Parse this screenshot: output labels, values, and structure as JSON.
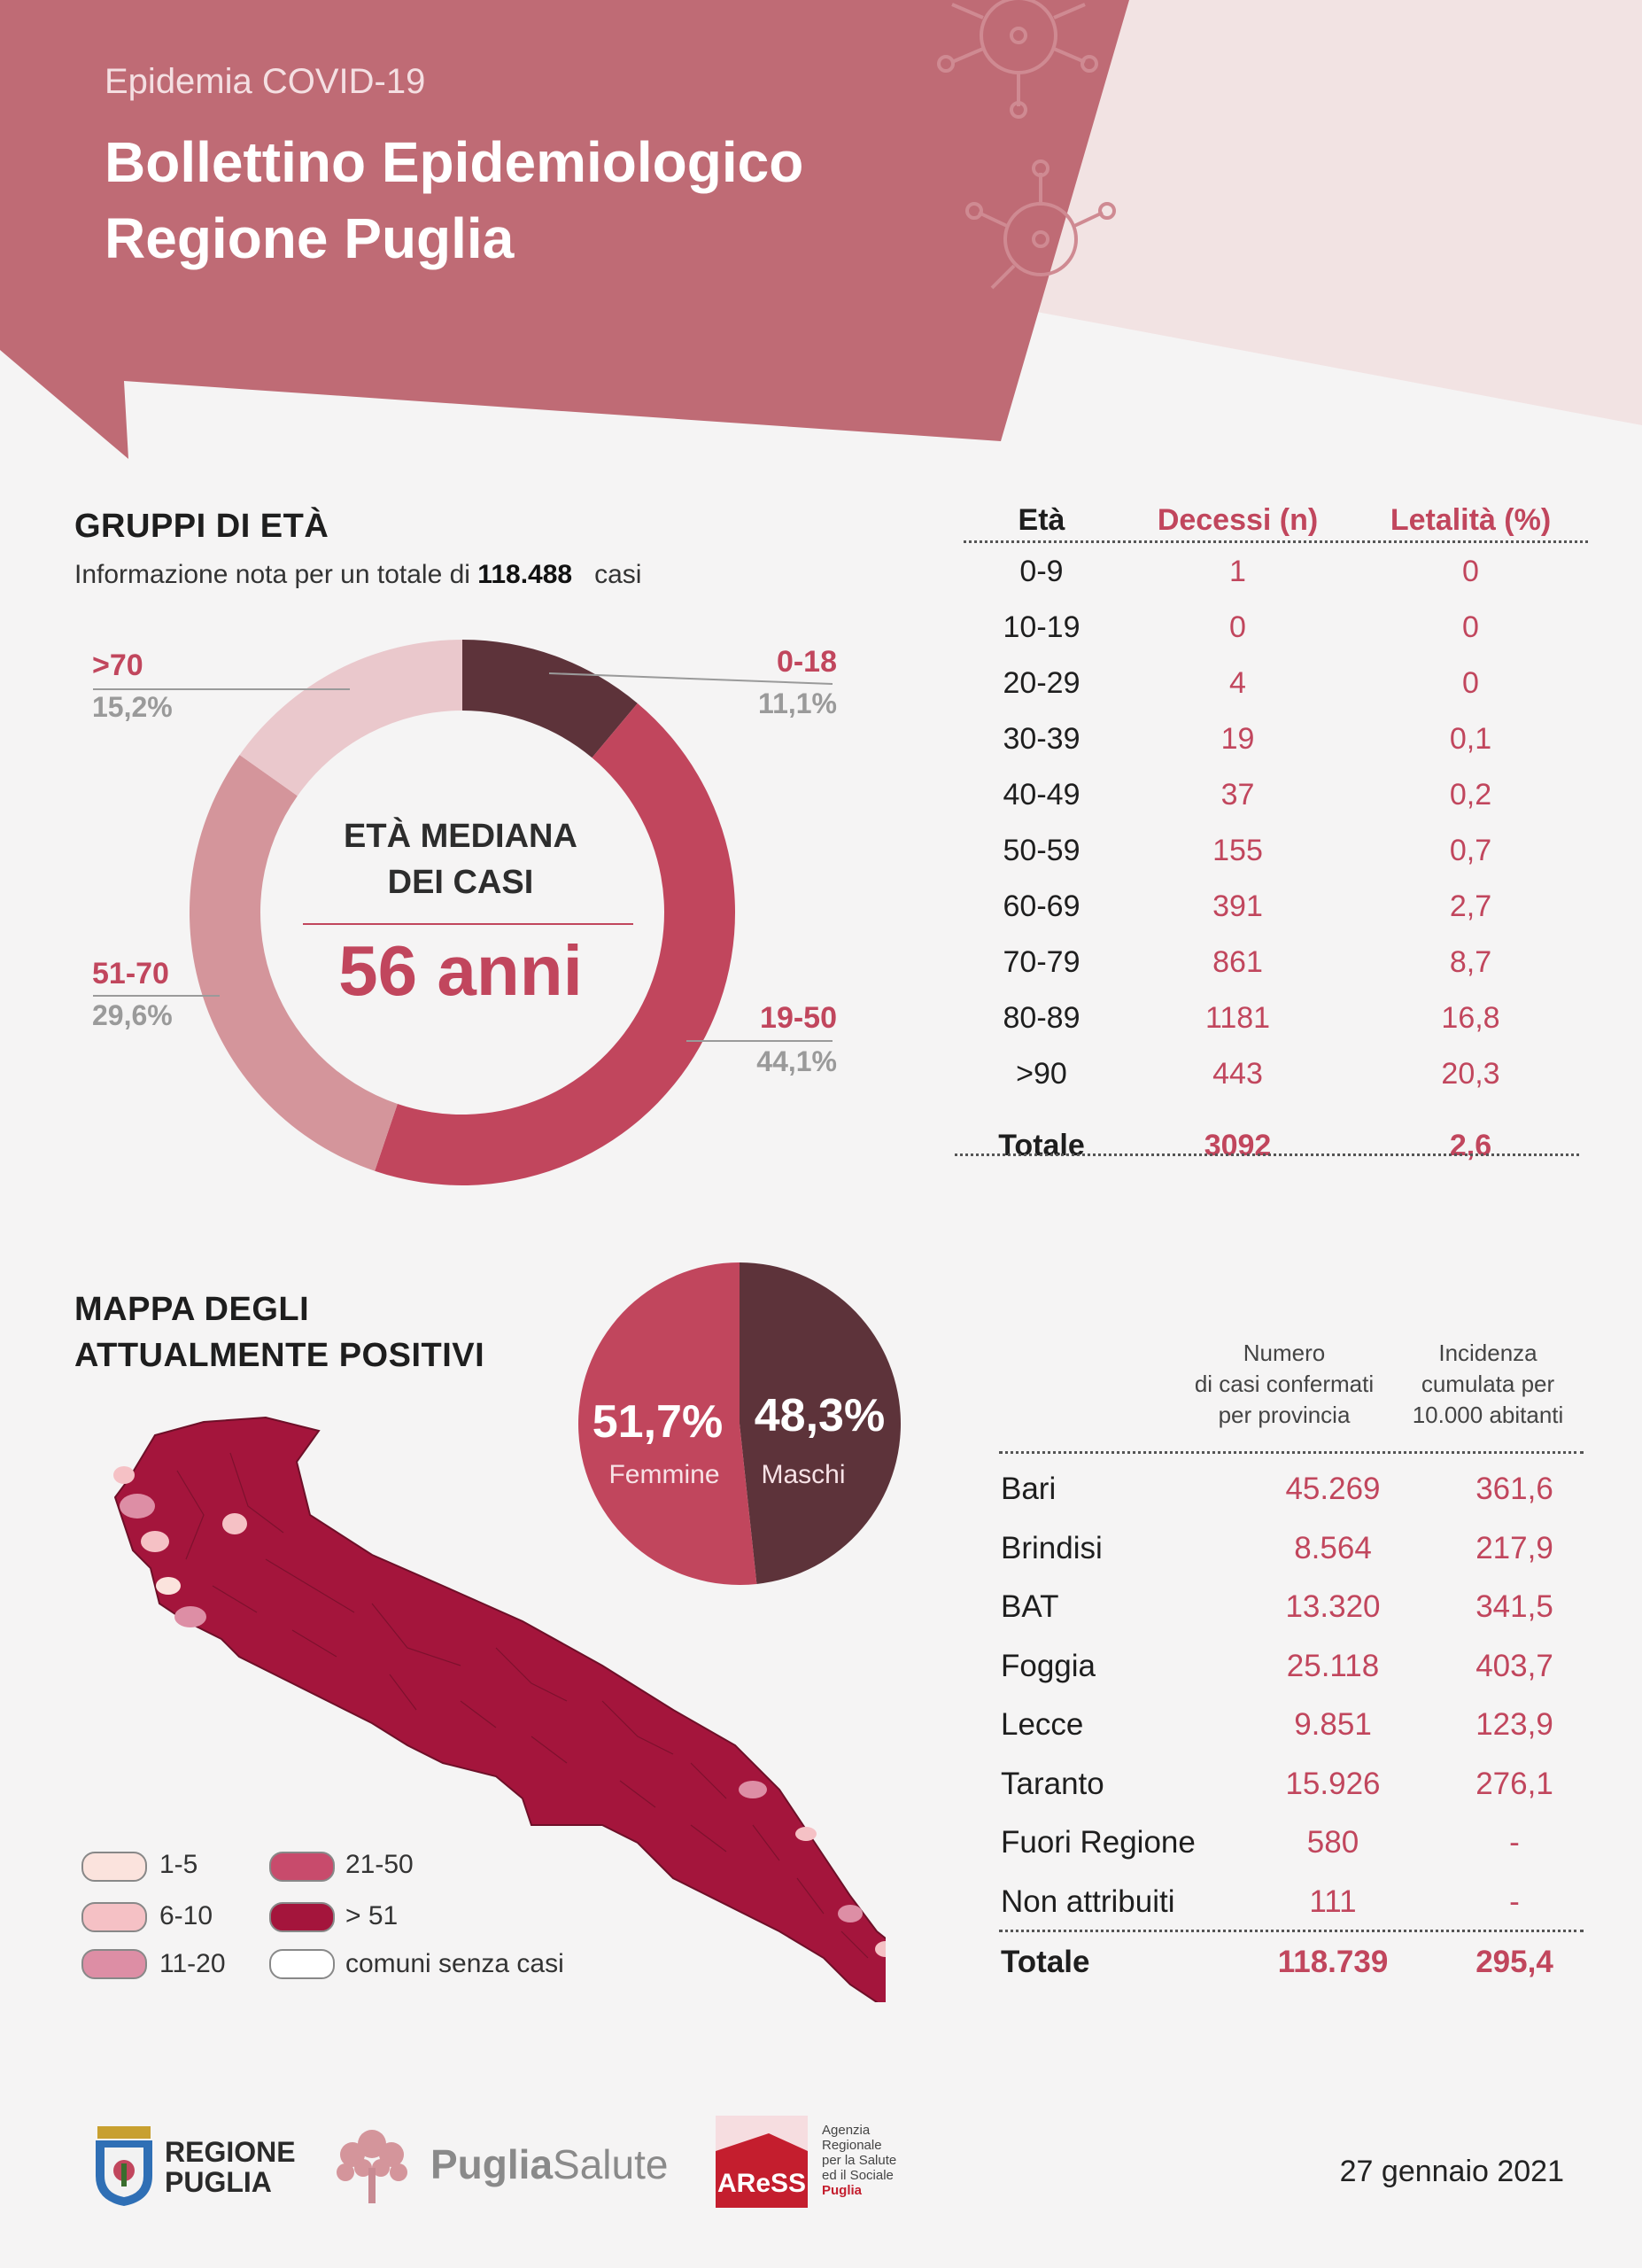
{
  "header": {
    "subtitle": "Epidemia COVID-19",
    "title_line1": "Bollettino Epidemiologico",
    "title_line2": "Regione Puglia"
  },
  "age_groups": {
    "title": "GRUPPI DI ETÀ",
    "info_prefix": "Informazione nota per un totale di",
    "info_total": "118.488",
    "info_suffix": "casi",
    "median_title_line1": "ETÀ MEDIANA",
    "median_title_line2": "DEI CASI",
    "median_value": "56 anni",
    "slices": [
      {
        "label": "0-18",
        "pct_label": "11,1%",
        "value": 11.1,
        "color": "#5d333a"
      },
      {
        "label": "19-50",
        "pct_label": "44,1%",
        "value": 44.1,
        "color": "#c1465d"
      },
      {
        "label": "51-70",
        "pct_label": "29,6%",
        "value": 29.6,
        "color": "#d4959b"
      },
      {
        "label": ">70",
        "pct_label": "15,2%",
        "value": 15.2,
        "color": "#eac8cc"
      }
    ]
  },
  "deaths_table": {
    "headers": [
      "Età",
      "Decessi (n)",
      "Letalità (%)"
    ],
    "rows": [
      [
        "0-9",
        "1",
        "0"
      ],
      [
        "10-19",
        "0",
        "0"
      ],
      [
        "20-29",
        "4",
        "0"
      ],
      [
        "30-39",
        "19",
        "0,1"
      ],
      [
        "40-49",
        "37",
        "0,2"
      ],
      [
        "50-59",
        "155",
        "0,7"
      ],
      [
        "60-69",
        "391",
        "2,7"
      ],
      [
        "70-79",
        "861",
        "8,7"
      ],
      [
        "80-89",
        "1181",
        "16,8"
      ],
      [
        ">90",
        "443",
        "20,3"
      ]
    ],
    "total": [
      "Totale",
      "3092",
      "2,6"
    ]
  },
  "map": {
    "title_line1": "MAPPA DEGLI",
    "title_line2": "ATTUALMENTE POSITIVI",
    "legend": [
      {
        "label": "1-5",
        "color": "#fbe3dd"
      },
      {
        "label": "6-10",
        "color": "#f5c1c5"
      },
      {
        "label": "11-20",
        "color": "#dd8ea5"
      },
      {
        "label": "21-50",
        "color": "#c84b6c"
      },
      {
        "label": "> 51",
        "color": "#a4153c"
      },
      {
        "label": "comuni senza casi",
        "color": "#ffffff"
      }
    ]
  },
  "sex": {
    "female_pct": "51,7%",
    "female_label": "Femmine",
    "female_value": 51.7,
    "female_color": "#c1465d",
    "male_pct": "48,3%",
    "male_label": "Maschi",
    "male_value": 48.3,
    "male_color": "#5d333a"
  },
  "provinces": {
    "header_col1_line1": "Numero",
    "header_col1_line2": "di casi confermati",
    "header_col1_line3": "per provincia",
    "header_col2_line1": "Incidenza",
    "header_col2_line2": "cumulata per",
    "header_col2_line3": "10.000 abitanti",
    "rows": [
      [
        "Bari",
        "45.269",
        "361,6"
      ],
      [
        "Brindisi",
        "8.564",
        "217,9"
      ],
      [
        "BAT",
        "13.320",
        "341,5"
      ],
      [
        "Foggia",
        "25.118",
        "403,7"
      ],
      [
        "Lecce",
        "9.851",
        "123,9"
      ],
      [
        "Taranto",
        "15.926",
        "276,1"
      ],
      [
        "Fuori Regione",
        "580",
        "-"
      ],
      [
        "Non attribuiti",
        "111",
        "-"
      ]
    ],
    "total": [
      "Totale",
      "118.739",
      "295,4"
    ]
  },
  "footer": {
    "regione_line1": "REGIONE",
    "regione_line2": "PUGLIA",
    "puglia_bold": "Puglia",
    "puglia_light": "Salute",
    "aress_logo": "AReSS",
    "aress_line1": "Agenzia",
    "aress_line2": "Regionale",
    "aress_line3": "per la Salute",
    "aress_line4": "ed il Sociale",
    "aress_line5": "Puglia",
    "date": "27 gennaio 2021"
  },
  "colors": {
    "accent": "#c1465d",
    "header_bg": "#bf6b75",
    "dark": "#5d333a"
  }
}
